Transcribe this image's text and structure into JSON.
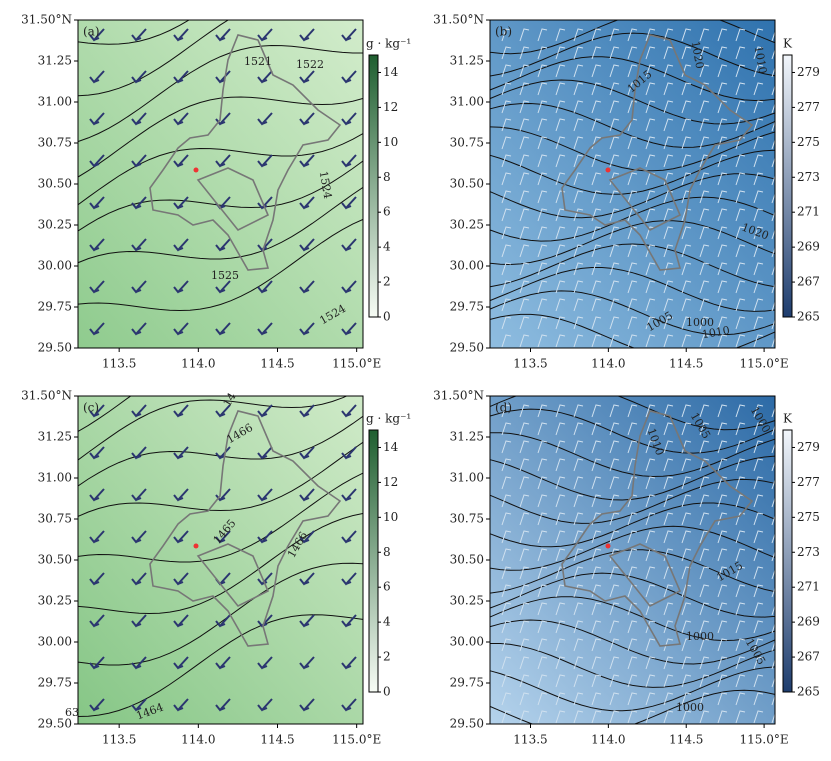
{
  "chart_data": [
    {
      "type": "map",
      "panel_label": "(a)",
      "xlim": [
        113.24,
        115.04
      ],
      "ylim": [
        29.5,
        31.5
      ],
      "xticks": [
        113.5,
        {
          "value": 114.0,
          "label": "114.0"
        },
        114.5,
        {
          "value": 115.0,
          "label": "115.0°E"
        }
      ],
      "yticks": [
        {
          "value": 29.5,
          "label": "29.50"
        },
        29.75,
        {
          "value": 30.0,
          "label": "30.00"
        },
        30.25,
        {
          "value": 30.5,
          "label": "30.50"
        },
        30.75,
        {
          "value": 31.0,
          "label": "31.00"
        },
        31.25,
        {
          "value": 31.5,
          "label": "31.50°N"
        }
      ],
      "colorbar_label": "g · kg⁻¹",
      "clim": [
        0,
        15
      ],
      "cticks": [
        0,
        2,
        4,
        6,
        8,
        10,
        12,
        14
      ],
      "cmap": [
        "#f7fcf5",
        "#1f5f30"
      ],
      "field_colors": [
        "#d2eccb",
        "#8fcb8e"
      ],
      "contour_labels": [
        1521,
        1522,
        1524,
        1525,
        1524
      ]
    },
    {
      "type": "map",
      "panel_label": "(b)",
      "xlim": [
        113.24,
        115.07
      ],
      "ylim": [
        29.5,
        31.5
      ],
      "xticks": [
        113.5,
        {
          "value": 114.0,
          "label": "114.0"
        },
        114.5,
        {
          "value": 115.0,
          "label": "115.0°E"
        }
      ],
      "yticks": [
        {
          "value": 29.5,
          "label": "29.50"
        },
        29.75,
        {
          "value": 30.0,
          "label": "30.00"
        },
        30.25,
        {
          "value": 30.5,
          "label": "30.50"
        },
        30.75,
        {
          "value": 31.0,
          "label": "31.00"
        },
        31.25,
        {
          "value": 31.5,
          "label": "31.50°N"
        }
      ],
      "colorbar_label": "K",
      "clim": [
        265,
        280
      ],
      "cticks": [
        265,
        267,
        269,
        271,
        273,
        275,
        277,
        279
      ],
      "cmap": [
        "#1e3d6e",
        "#f2f6fb"
      ],
      "field_colors": [
        "#2f72ae",
        "#8fbde0"
      ],
      "contour_labels": [
        1015,
        1020,
        1010,
        1020,
        1005,
        1000,
        1010
      ]
    },
    {
      "type": "map",
      "panel_label": "(c)",
      "xlim": [
        113.24,
        115.04
      ],
      "ylim": [
        29.5,
        31.5
      ],
      "xticks": [
        113.5,
        {
          "value": 114.0,
          "label": "114.0"
        },
        114.5,
        {
          "value": 115.0,
          "label": "115.0°E"
        }
      ],
      "yticks": [
        {
          "value": 29.5,
          "label": "29.50"
        },
        29.75,
        {
          "value": 30.0,
          "label": "30.00"
        },
        30.25,
        {
          "value": 30.5,
          "label": "30.50"
        },
        30.75,
        {
          "value": 31.0,
          "label": "31.00"
        },
        31.25,
        {
          "value": 31.5,
          "label": "31.50°N"
        }
      ],
      "colorbar_label": "g · kg⁻¹",
      "clim": [
        0,
        15
      ],
      "cticks": [
        0,
        2,
        4,
        6,
        8,
        10,
        12,
        14
      ],
      "cmap": [
        "#f7fcf5",
        "#1f5f30"
      ],
      "field_colors": [
        "#cfeac8",
        "#86c686"
      ],
      "contour_labels": [
        1466,
        1466,
        1465,
        1464,
        63,
        14
      ]
    },
    {
      "type": "map",
      "panel_label": "(d)",
      "xlim": [
        113.24,
        115.07
      ],
      "ylim": [
        29.5,
        31.5
      ],
      "xticks": [
        113.5,
        {
          "value": 114.0,
          "label": "114.0"
        },
        114.5,
        {
          "value": 115.0,
          "label": "115.0°E"
        }
      ],
      "yticks": [
        {
          "value": 29.5,
          "label": "29.50"
        },
        29.75,
        {
          "value": 30.0,
          "label": "30.00"
        },
        30.25,
        {
          "value": 30.5,
          "label": "30.50"
        },
        30.75,
        {
          "value": 31.0,
          "label": "31.00"
        },
        31.25,
        {
          "value": 31.5,
          "label": "31.50°N"
        }
      ],
      "colorbar_label": "K",
      "clim": [
        265,
        280
      ],
      "cticks": [
        265,
        267,
        269,
        271,
        273,
        275,
        277,
        279
      ],
      "cmap": [
        "#1e3d6e",
        "#f2f6fb"
      ],
      "field_colors": [
        "#2c6aa6",
        "#b5d3ec"
      ],
      "contour_labels": [
        1010,
        1005,
        1000,
        1015,
        1005,
        1000,
        1000
      ]
    }
  ]
}
